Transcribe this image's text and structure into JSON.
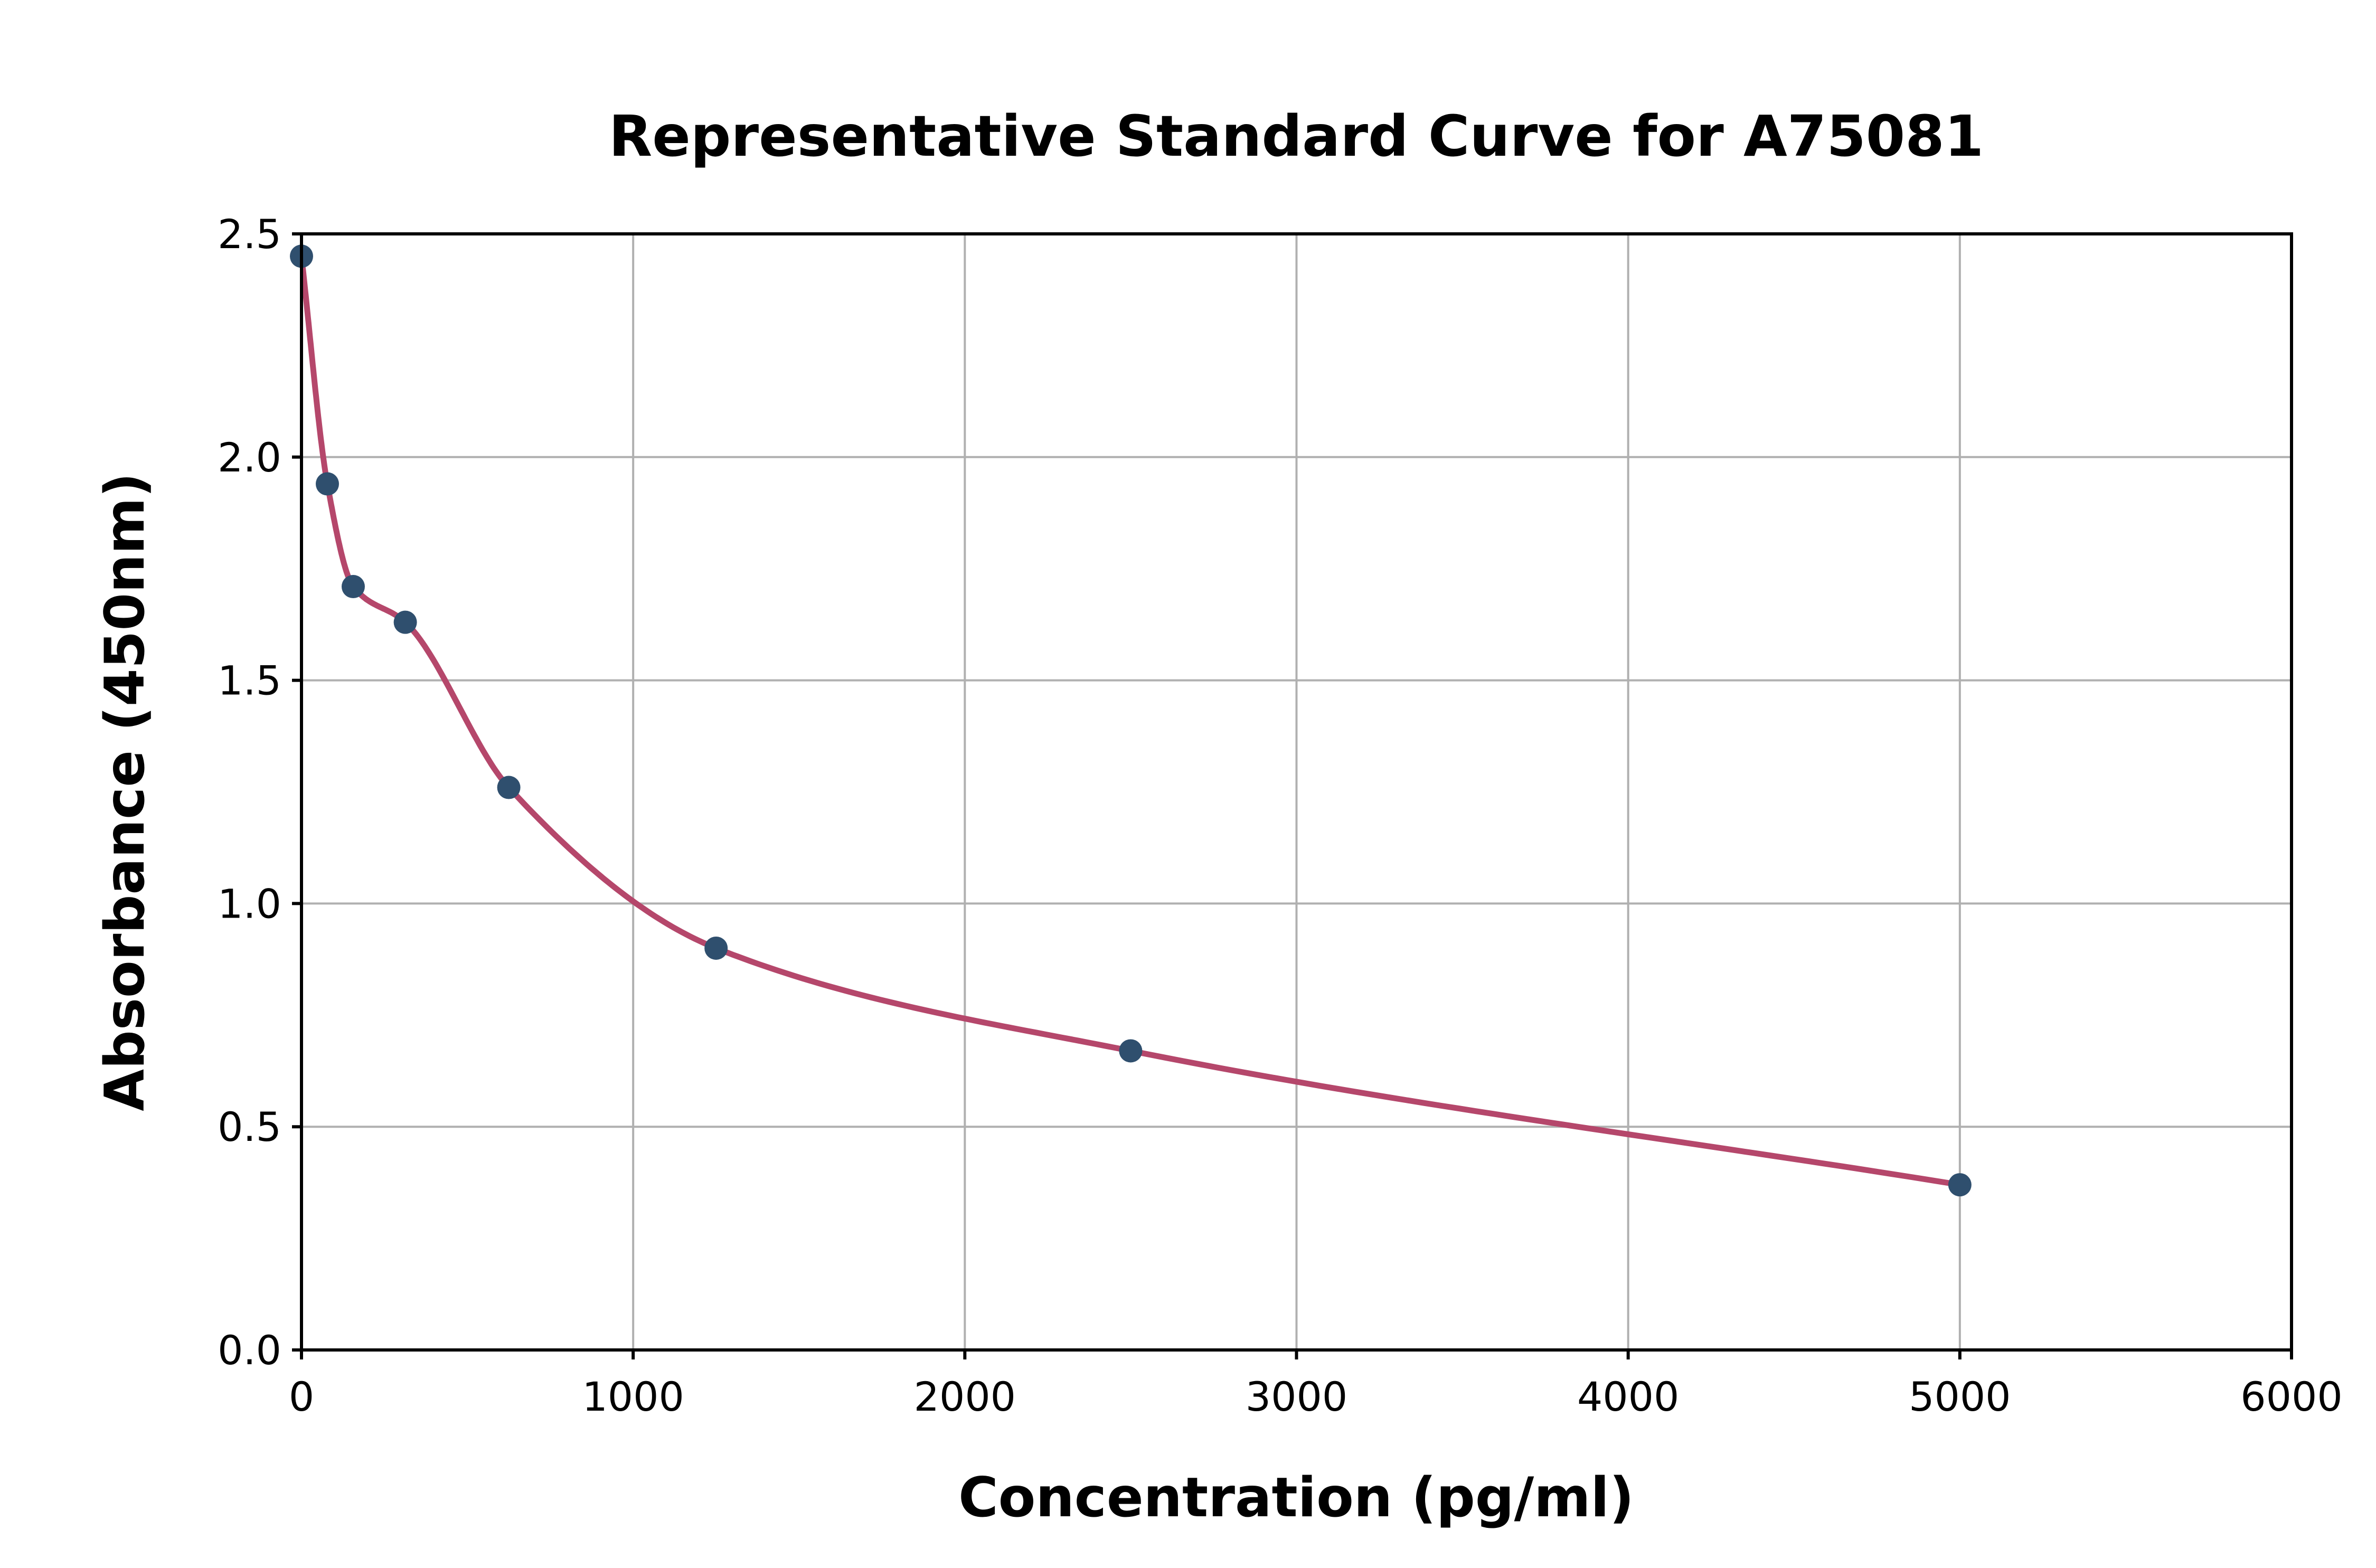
{
  "chart_data": {
    "type": "scatter",
    "title": "Representative Standard Curve for A75081",
    "xlabel": "Concentration (pg/ml)",
    "ylabel": "Absorbance (450nm)",
    "xlim": [
      0,
      6000
    ],
    "ylim": [
      0,
      2.5
    ],
    "grid": true,
    "legend": "none",
    "x_ticks": [
      0,
      1000,
      2000,
      3000,
      4000,
      5000,
      6000
    ],
    "x_tick_labels": [
      "0",
      "1000",
      "2000",
      "3000",
      "4000",
      "5000",
      "6000"
    ],
    "y_ticks": [
      0.0,
      0.5,
      1.0,
      1.5,
      2.0,
      2.5
    ],
    "y_tick_labels": [
      "0.0",
      "0.5",
      "1.0",
      "1.5",
      "2.0",
      "2.5"
    ],
    "points": [
      {
        "x": 0,
        "y": 2.45
      },
      {
        "x": 78,
        "y": 1.94
      },
      {
        "x": 156,
        "y": 1.71
      },
      {
        "x": 313,
        "y": 1.63
      },
      {
        "x": 625,
        "y": 1.26
      },
      {
        "x": 1250,
        "y": 0.9
      },
      {
        "x": 2500,
        "y": 0.67
      },
      {
        "x": 5000,
        "y": 0.37
      }
    ],
    "fit_curve": "4PL standard curve through points",
    "colors": {
      "curve": "#b5476b",
      "points": "#2f4f6e",
      "grid": "#b0b0b0",
      "axis": "#000000",
      "background": "#ffffff"
    }
  }
}
